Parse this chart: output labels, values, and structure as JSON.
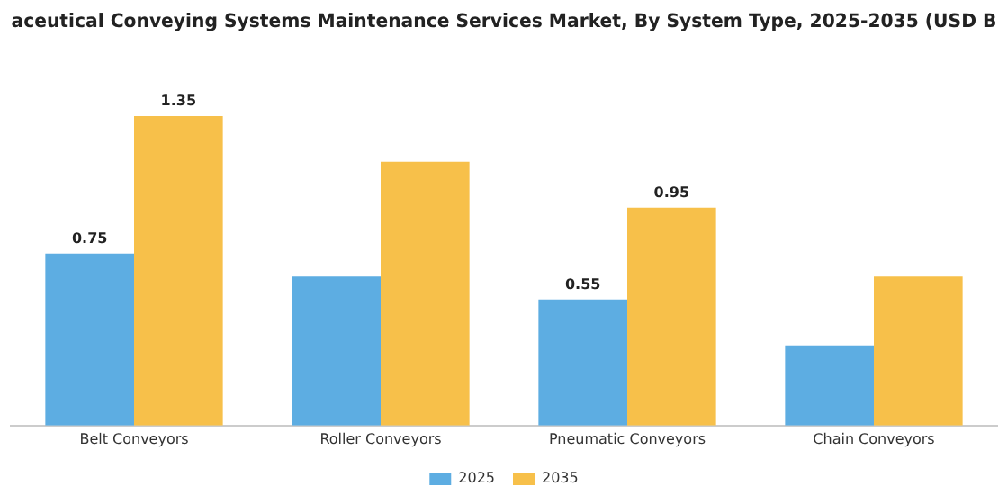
{
  "chart_data": {
    "type": "bar",
    "title": "aceutical Conveying Systems Maintenance Services Market, By System Type, 2025-2035 (USD B",
    "categories": [
      "Belt Conveyors",
      "Roller Conveyors",
      "Pneumatic Conveyors",
      "Chain Conveyors"
    ],
    "series": [
      {
        "name": "2025",
        "color": "#5dade2",
        "values": [
          0.75,
          0.65,
          0.55,
          0.35
        ],
        "value_labels": [
          "0.75",
          null,
          "0.55",
          null
        ]
      },
      {
        "name": "2035",
        "color": "#f7c04a",
        "values": [
          1.35,
          1.15,
          0.95,
          0.65
        ],
        "value_labels": [
          "1.35",
          null,
          "0.95",
          null
        ]
      }
    ],
    "tick_labels": "x",
    "grid": false,
    "legend": "bottom"
  }
}
